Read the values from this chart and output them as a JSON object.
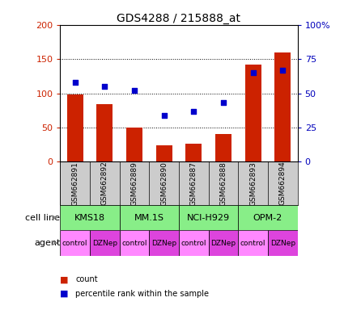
{
  "title": "GDS4288 / 215888_at",
  "samples": [
    "GSM662891",
    "GSM662892",
    "GSM662889",
    "GSM662890",
    "GSM662887",
    "GSM662888",
    "GSM662893",
    "GSM662894"
  ],
  "counts": [
    98,
    84,
    50,
    24,
    26,
    40,
    142,
    160
  ],
  "percentiles": [
    58,
    55,
    52,
    34,
    37,
    43,
    65,
    67
  ],
  "ylim_left": [
    0,
    200
  ],
  "ylim_right": [
    0,
    100
  ],
  "yticks_left": [
    0,
    50,
    100,
    150,
    200
  ],
  "yticks_right": [
    0,
    25,
    50,
    75,
    100
  ],
  "ytick_labels_right": [
    "0",
    "25",
    "50",
    "75",
    "100%"
  ],
  "bar_color": "#cc2200",
  "dot_color": "#0000cc",
  "cell_lines": [
    "KMS18",
    "MM.1S",
    "NCI-H929",
    "OPM-2"
  ],
  "cell_line_color": "#88ee88",
  "cell_line_spans": [
    [
      0,
      2
    ],
    [
      2,
      4
    ],
    [
      4,
      6
    ],
    [
      6,
      8
    ]
  ],
  "agents": [
    "control",
    "DZNep",
    "control",
    "DZNep",
    "control",
    "DZNep",
    "control",
    "DZNep"
  ],
  "agent_color_control": "#ff88ff",
  "agent_color_dznep": "#dd44dd",
  "sample_bg_color": "#cccccc",
  "label_color_left": "#cc2200",
  "label_color_right": "#0000bb",
  "title_fontsize": 10,
  "tick_fontsize": 8,
  "sample_fontsize": 6.5,
  "row_label_fontsize": 8,
  "cell_line_fontsize": 8,
  "agent_fontsize": 6.5,
  "legend_fontsize": 7
}
